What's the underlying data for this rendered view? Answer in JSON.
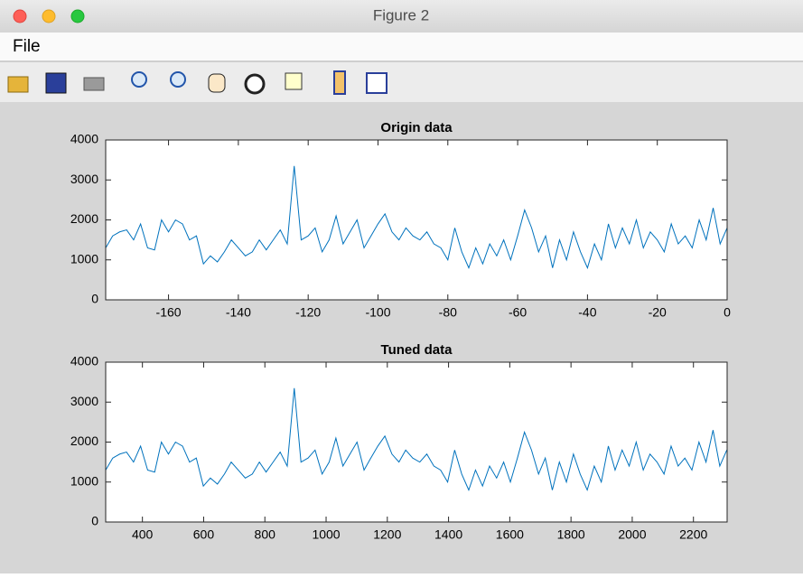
{
  "window": {
    "title": "Figure 2",
    "menu": [
      "File"
    ]
  },
  "chart_data": [
    {
      "type": "line",
      "title": "Origin data",
      "color": "#0072bd",
      "x": [
        -178,
        -176,
        -174,
        -172,
        -170,
        -168,
        -166,
        -164,
        -162,
        -160,
        -158,
        -156,
        -154,
        -152,
        -150,
        -148,
        -146,
        -144,
        -142,
        -140,
        -138,
        -136,
        -134,
        -132,
        -130,
        -128,
        -126,
        -124,
        -122,
        -120,
        -118,
        -116,
        -114,
        -112,
        -110,
        -108,
        -106,
        -104,
        -102,
        -100,
        -98,
        -96,
        -94,
        -92,
        -90,
        -88,
        -86,
        -84,
        -82,
        -80,
        -78,
        -76,
        -74,
        -72,
        -70,
        -68,
        -66,
        -64,
        -62,
        -60,
        -58,
        -56,
        -54,
        -52,
        -50,
        -48,
        -46,
        -44,
        -42,
        -40,
        -38,
        -36,
        -34,
        -32,
        -30,
        -28,
        -26,
        -24,
        -22,
        -20,
        -18,
        -16,
        -14,
        -12,
        -10,
        -8,
        -6,
        -4,
        -2,
        0
      ],
      "values": [
        1300,
        1600,
        1700,
        1750,
        1500,
        1900,
        1300,
        1250,
        2000,
        1700,
        2000,
        1900,
        1500,
        1600,
        900,
        1100,
        950,
        1200,
        1500,
        1300,
        1100,
        1200,
        1500,
        1250,
        1500,
        1750,
        1400,
        3350,
        1500,
        1600,
        1800,
        1200,
        1500,
        2100,
        1400,
        1700,
        2000,
        1300,
        1600,
        1900,
        2150,
        1700,
        1500,
        1800,
        1600,
        1500,
        1700,
        1400,
        1300,
        1000,
        1800,
        1200,
        800,
        1300,
        900,
        1400,
        1100,
        1500,
        1000,
        1600,
        2250,
        1800,
        1200,
        1600,
        800,
        1500,
        1000,
        1700,
        1200,
        800,
        1400,
        1000,
        1900,
        1300,
        1800,
        1400,
        2000,
        1300,
        1700,
        1500,
        1200,
        1900,
        1400,
        1600,
        1300,
        2000,
        1500,
        2300,
        1400,
        1800
      ],
      "xlim": [
        -178,
        0
      ],
      "xticks": [
        -160,
        -140,
        -120,
        -100,
        -80,
        -60,
        -40,
        -20,
        0
      ],
      "ylim": [
        0,
        4000
      ],
      "yticks": [
        0,
        1000,
        2000,
        3000,
        4000
      ]
    },
    {
      "type": "line",
      "title": "Tuned data",
      "color": "#0072bd",
      "x": [
        280,
        303,
        326,
        348,
        371,
        394,
        417,
        440,
        462,
        485,
        508,
        531,
        554,
        576,
        599,
        622,
        645,
        668,
        690,
        713,
        736,
        759,
        782,
        804,
        827,
        850,
        873,
        896,
        918,
        941,
        964,
        987,
        1010,
        1032,
        1055,
        1078,
        1101,
        1124,
        1146,
        1169,
        1192,
        1215,
        1238,
        1260,
        1283,
        1306,
        1329,
        1352,
        1374,
        1397,
        1420,
        1443,
        1466,
        1488,
        1511,
        1534,
        1557,
        1580,
        1602,
        1625,
        1648,
        1671,
        1694,
        1716,
        1739,
        1762,
        1785,
        1808,
        1830,
        1853,
        1876,
        1899,
        1922,
        1944,
        1967,
        1990,
        2013,
        2036,
        2058,
        2081,
        2104,
        2127,
        2150,
        2172,
        2195,
        2218,
        2241,
        2264,
        2286,
        2309
      ],
      "values": [
        1300,
        1600,
        1700,
        1750,
        1500,
        1900,
        1300,
        1250,
        2000,
        1700,
        2000,
        1900,
        1500,
        1600,
        900,
        1100,
        950,
        1200,
        1500,
        1300,
        1100,
        1200,
        1500,
        1250,
        1500,
        1750,
        1400,
        3350,
        1500,
        1600,
        1800,
        1200,
        1500,
        2100,
        1400,
        1700,
        2000,
        1300,
        1600,
        1900,
        2150,
        1700,
        1500,
        1800,
        1600,
        1500,
        1700,
        1400,
        1300,
        1000,
        1800,
        1200,
        800,
        1300,
        900,
        1400,
        1100,
        1500,
        1000,
        1600,
        2250,
        1800,
        1200,
        1600,
        800,
        1500,
        1000,
        1700,
        1200,
        800,
        1400,
        1000,
        1900,
        1300,
        1800,
        1400,
        2000,
        1300,
        1700,
        1500,
        1200,
        1900,
        1400,
        1600,
        1300,
        2000,
        1500,
        2300,
        1400,
        1800
      ],
      "xlim": [
        280,
        2310
      ],
      "xticks": [
        400,
        600,
        800,
        1000,
        1200,
        1400,
        1600,
        1800,
        2000,
        2200
      ],
      "ylim": [
        0,
        4000
      ],
      "yticks": [
        0,
        1000,
        2000,
        3000,
        4000
      ]
    }
  ]
}
